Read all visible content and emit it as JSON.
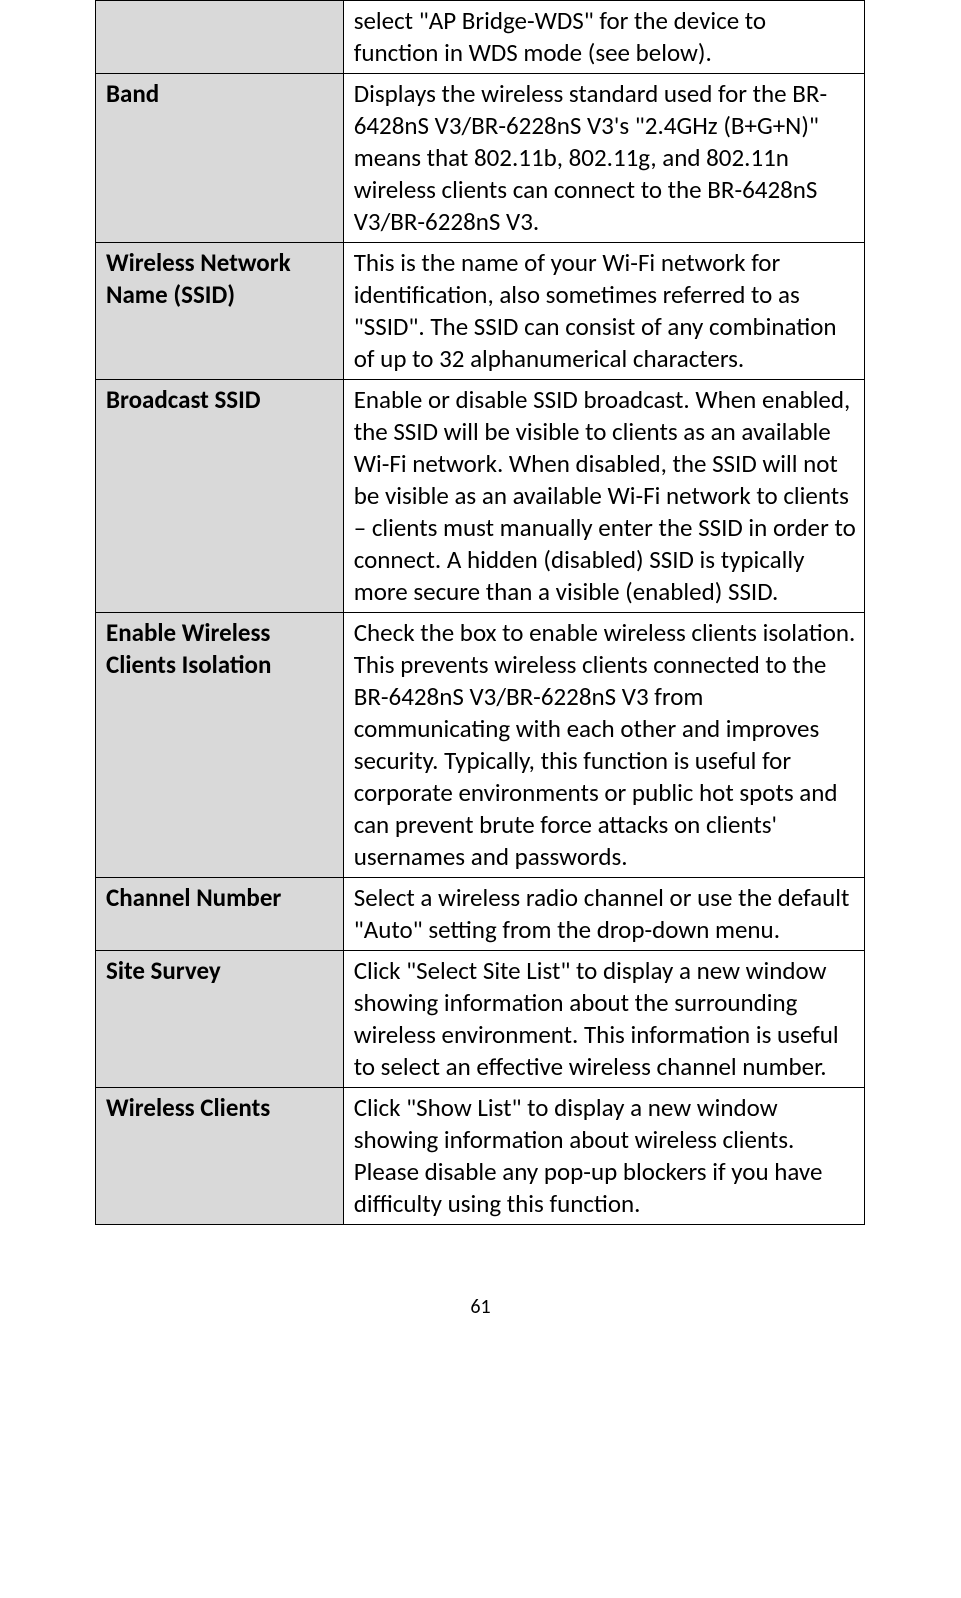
{
  "table": {
    "rows": [
      {
        "label": "",
        "desc": "select \"AP Bridge-WDS\" for the device to function in WDS mode (see below)."
      },
      {
        "label": "Band",
        "desc": "Displays the wireless standard used for the BR-6428nS V3/BR-6228nS V3's \"2.4GHz (B+G+N)\" means that 802.11b, 802.11g, and 802.11n wireless clients can connect to the BR-6428nS V3/BR-6228nS V3."
      },
      {
        "label": "Wireless Network Name (SSID)",
        "desc": "This is the name of your Wi-Fi network for identification, also sometimes referred to as \"SSID\". The SSID can consist of any combination of up to 32 alphanumerical characters."
      },
      {
        "label": "Broadcast SSID",
        "desc": "Enable or disable SSID broadcast. When enabled, the SSID will be visible to clients as an available Wi-Fi network. When disabled, the SSID will not be visible as an available Wi-Fi network to clients – clients must manually enter the SSID in order to connect. A hidden (disabled) SSID is typically more secure than a visible (enabled) SSID."
      },
      {
        "label": "Enable Wireless Clients Isolation",
        "desc": "Check the box to enable wireless clients isolation. This prevents wireless clients connected to the BR-6428nS V3/BR-6228nS V3 from communicating with each other and improves security. Typically, this function is useful for corporate environments or public hot spots and can prevent brute force attacks on clients' usernames and passwords."
      },
      {
        "label": "Channel Number",
        "desc": "Select a wireless radio channel or use the default \"Auto\" setting from the drop-down menu."
      },
      {
        "label": "Site Survey",
        "desc": "Click \"Select Site List\" to display a new window showing information about the surrounding wireless environment. This information is useful to select an effective wireless channel number."
      },
      {
        "label": "Wireless Clients",
        "desc": "Click \"Show List\" to display a new window showing information about wireless clients. Please disable any pop-up blockers if you have difficulty using this function."
      }
    ]
  },
  "page_number": "61"
}
